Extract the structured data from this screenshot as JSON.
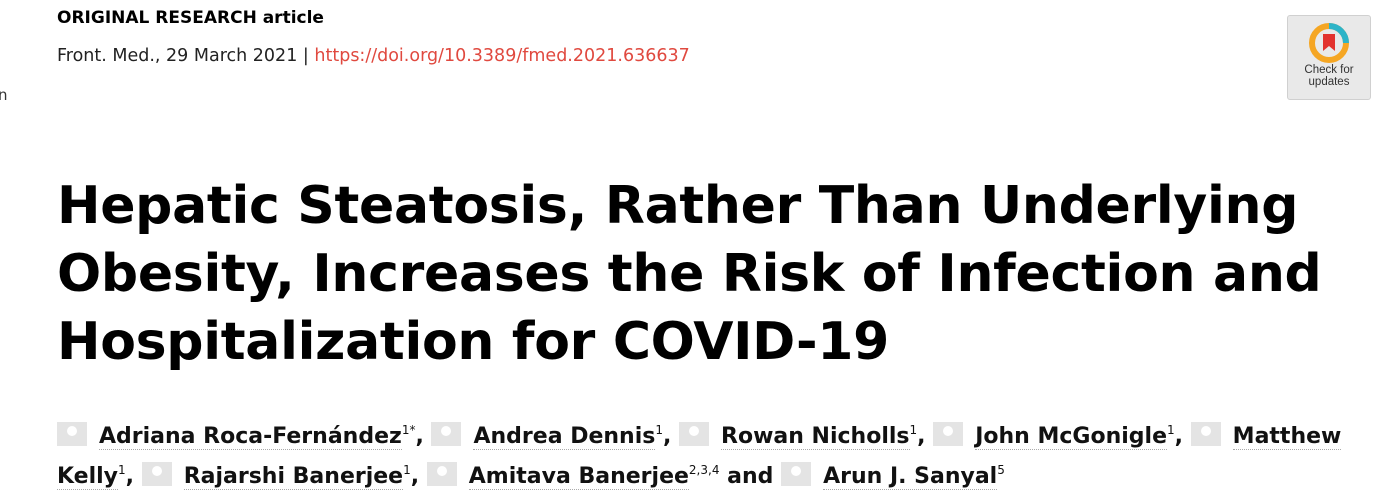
{
  "header": {
    "article_type": "ORIGINAL RESEARCH article",
    "journal_date": "Front. Med., 29 March 2021",
    "divider": "|",
    "doi": "https://doi.org/10.3389/fmed.2021.636637"
  },
  "sidebar_fragment": "n",
  "badge": {
    "lines": [
      "Check for",
      "updates"
    ]
  },
  "title_lines": [
    "Hepatic Steatosis, Rather Than Underlying",
    "Obesity, Increases the Risk of Infection and",
    "Hospitalization for COVID-19"
  ],
  "authors": [
    {
      "name": "Adriana Roca-Fernández",
      "affiliation": "1*"
    },
    {
      "name": "Andrea Dennis",
      "affiliation": "1"
    },
    {
      "name": "Rowan Nicholls",
      "affiliation": "1"
    },
    {
      "name": "John McGonigle",
      "affiliation": "1"
    },
    {
      "name": "Matthew Kelly",
      "affiliation": "1"
    },
    {
      "name": "Rajarshi Banerjee",
      "affiliation": "1"
    },
    {
      "name": "Amitava Banerjee",
      "affiliation": "2,3,4"
    },
    {
      "name": "Arun J. Sanyal",
      "affiliation": "5"
    }
  ],
  "separator": ",",
  "conjunction": "and"
}
